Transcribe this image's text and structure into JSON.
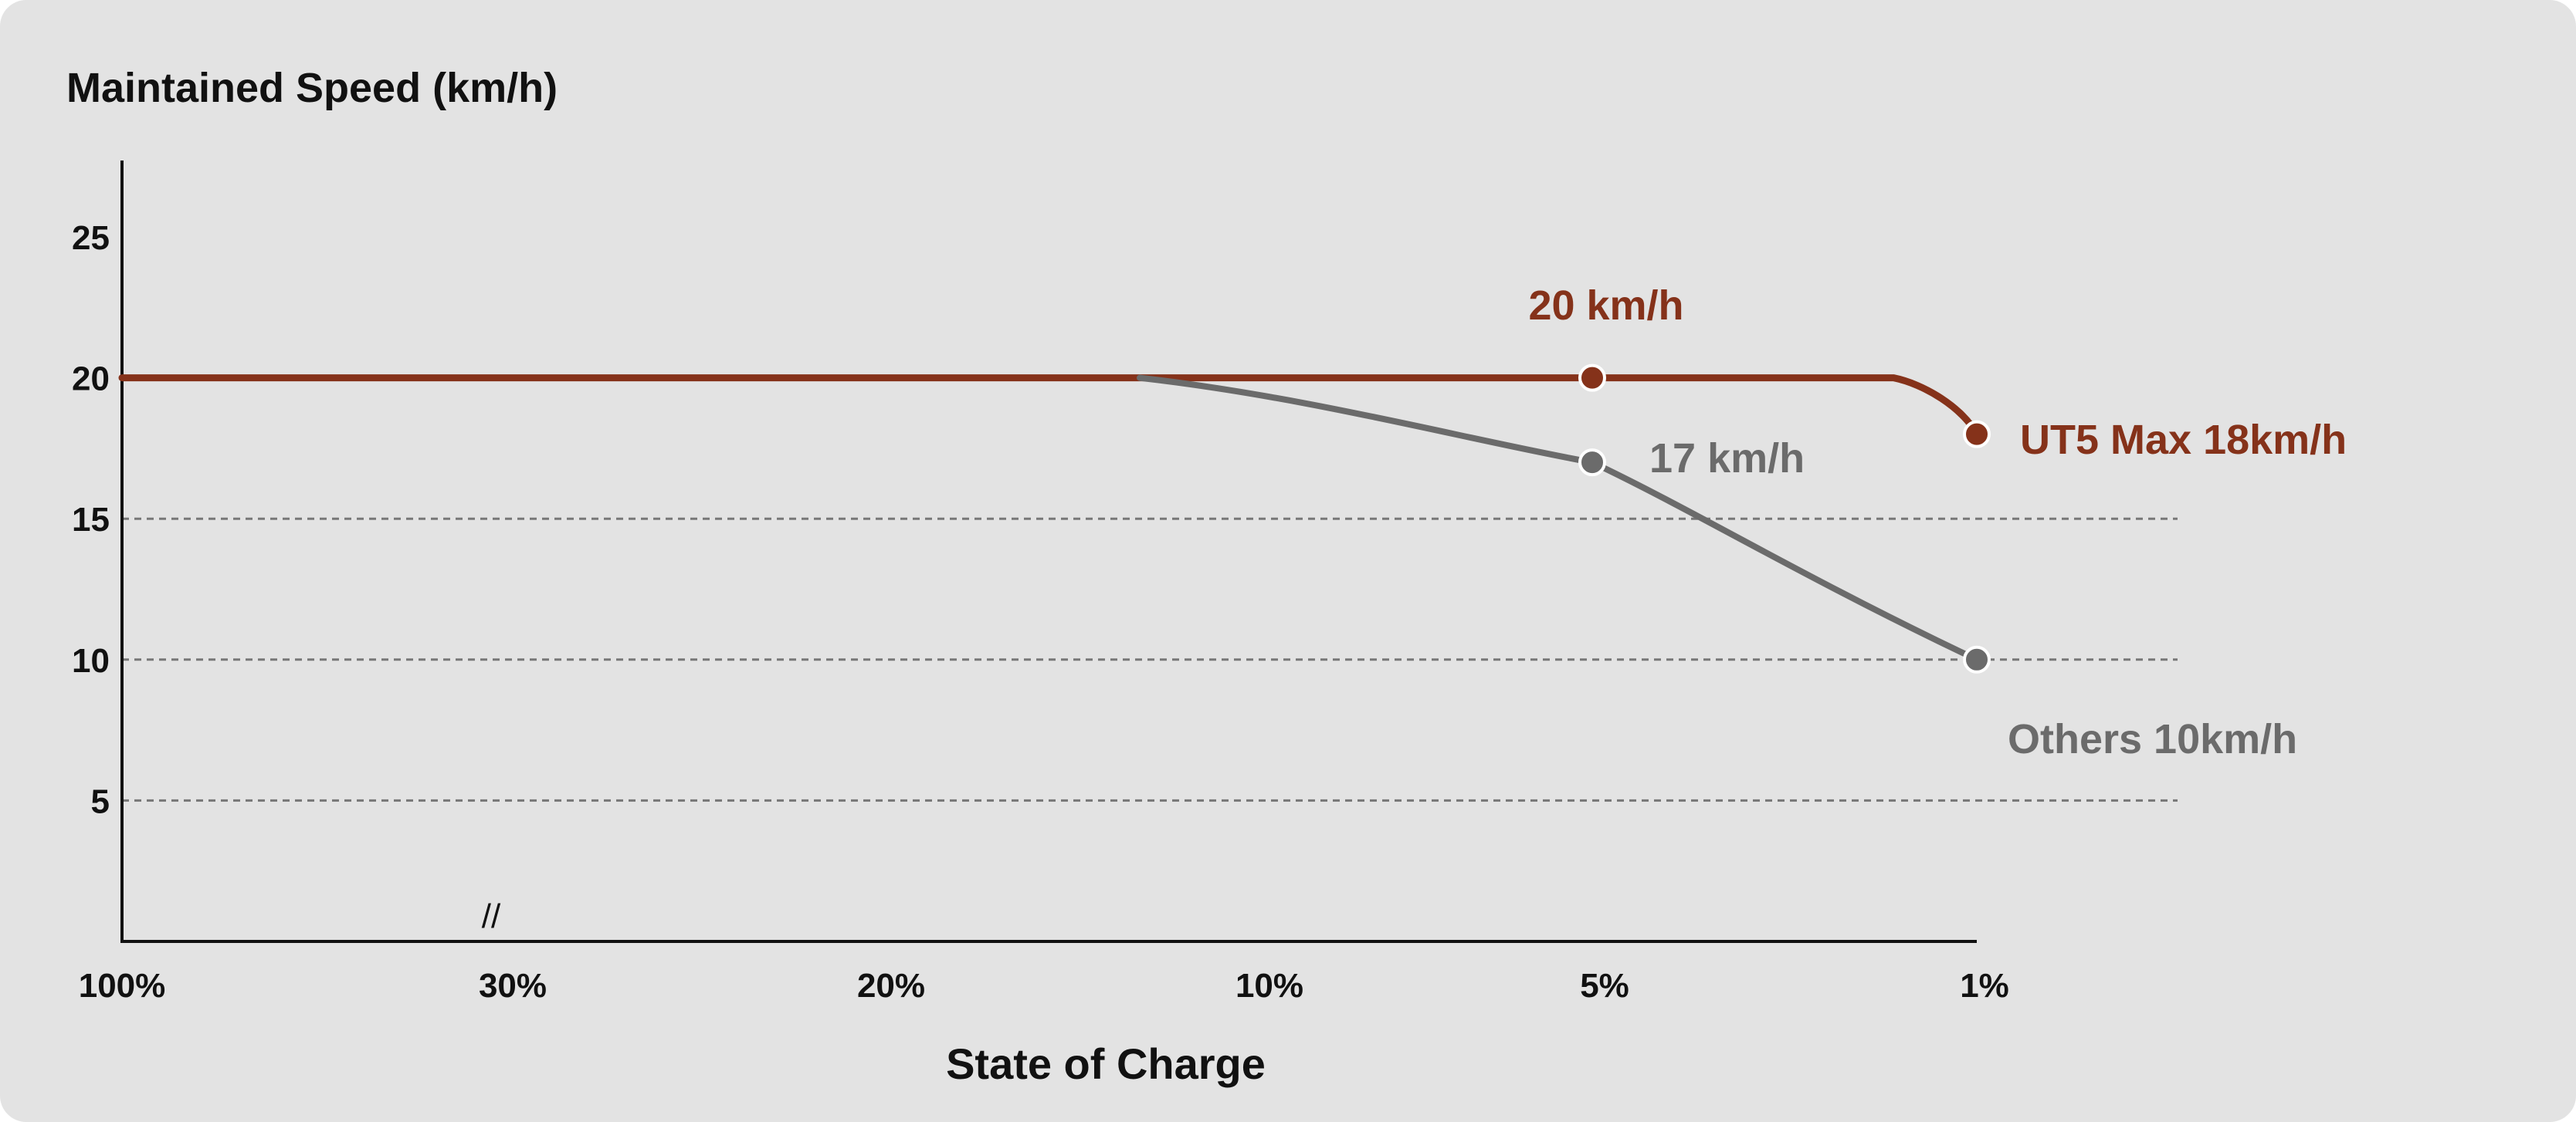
{
  "chart_data": {
    "type": "line",
    "title": "Maintained Speed (km/h)",
    "xlabel": "State of Charge",
    "ylabel": "Maintained Speed (km/h)",
    "x_tick_labels": [
      "100%",
      "30%",
      "20%",
      "10%",
      "5%",
      "1%"
    ],
    "y_ticks": [
      5,
      10,
      15,
      20,
      25
    ],
    "ylim": [
      0,
      27.5
    ],
    "x_axis_break": "//",
    "grid": "horizontal dashed at 5, 10, 15",
    "colors": {
      "ut5": "#85321a",
      "others": "#6b6b6b",
      "grid": "#777777",
      "axis": "#111111"
    },
    "series": [
      {
        "key": "ut5",
        "points": [
          {
            "x": "100%",
            "y": 20
          },
          {
            "x": "5%",
            "y": 20
          },
          {
            "x": "2%",
            "y": 20
          },
          {
            "x": "1%",
            "y": 18
          }
        ],
        "markers": [
          {
            "x": "5%",
            "y": 20
          },
          {
            "x": "1%",
            "y": 18
          }
        ]
      },
      {
        "key": "others",
        "points": [
          {
            "x": "13%",
            "y": 20
          },
          {
            "x": "5%",
            "y": 17
          },
          {
            "x": "3%",
            "y": 13
          },
          {
            "x": "1%",
            "y": 10
          }
        ],
        "markers": [
          {
            "x": "5%",
            "y": 17
          },
          {
            "x": "1%",
            "y": 10
          }
        ]
      }
    ],
    "annotations": [
      {
        "key": "ut5_5pct",
        "text": "20 km/h",
        "series": "ut5",
        "x": "5%",
        "y": 20
      },
      {
        "key": "ut5_1pct",
        "text": "UT5 Max 18km/h",
        "series": "ut5",
        "x": "1%",
        "y": 18
      },
      {
        "key": "others_5pct",
        "text": "17 km/h",
        "series": "others",
        "x": "5%",
        "y": 17
      },
      {
        "key": "others_1pct",
        "text": "Others 10km/h",
        "series": "others",
        "x": "1%",
        "y": 10
      }
    ]
  }
}
